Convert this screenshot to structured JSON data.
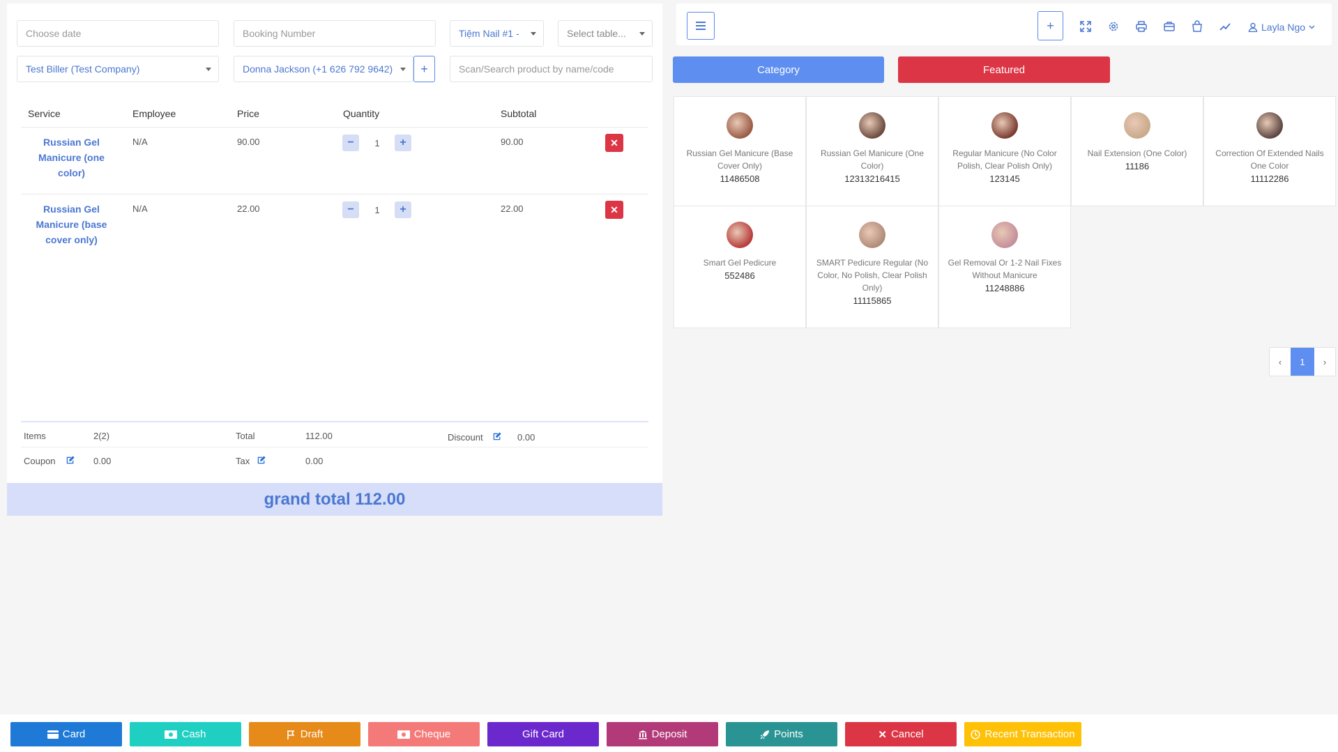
{
  "left": {
    "date_placeholder": "Choose date",
    "booking_placeholder": "Booking Number",
    "store": "Tiệm Nail #1 -",
    "table_placeholder": "Select table...",
    "biller": "Test Biller (Test Company)",
    "customer": "Donna Jackson (+1 626 792 9642)",
    "add_customer": "+",
    "search_placeholder": "Scan/Search product by name/code",
    "columns": [
      "Service",
      "Employee",
      "Price",
      "Quantity",
      "Subtotal"
    ],
    "rows": [
      {
        "service": "Russian Gel Manicure (one color)",
        "employee": "N/A",
        "price": "90.00",
        "qty": "1",
        "subtotal": "90.00"
      },
      {
        "service": "Russian Gel Manicure (base cover only)",
        "employee": "N/A",
        "price": "22.00",
        "qty": "1",
        "subtotal": "22.00"
      }
    ],
    "totals": {
      "items_label": "Items",
      "items_value": "2(2)",
      "total_label": "Total",
      "total_value": "112.00",
      "discount_label": "Discount",
      "discount_value": "0.00",
      "coupon_label": "Coupon",
      "coupon_value": "0.00",
      "tax_label": "Tax",
      "tax_value": "0.00"
    },
    "grand_total": "grand total 112.00"
  },
  "topbar": {
    "user": "Layla Ngo",
    "plus": "+"
  },
  "tabs": {
    "category": "Category",
    "featured": "Featured"
  },
  "products": [
    {
      "name": "Russian Gel Manicure (Base Cover Only)",
      "code": "11486508",
      "color": "#9a5a45"
    },
    {
      "name": "Russian Gel Manicure (One Color)",
      "code": "12313216415",
      "color": "#6b4a3e"
    },
    {
      "name": "Regular Manicure (No Color Polish, Clear Polish Only)",
      "code": "123145",
      "color": "#7a3b30"
    },
    {
      "name": "Nail Extension (One Color)",
      "code": "11186",
      "color": "#c9a98a"
    },
    {
      "name": "Correction Of Extended Nails One Color",
      "code": "11112286",
      "color": "#5a4540"
    },
    {
      "name": "Smart Gel Pedicure",
      "code": "552486",
      "color": "#b83a3a"
    },
    {
      "name": "SMART Pedicure Regular (No Color, No Polish, Clear Polish Only)",
      "code": "11115865",
      "color": "#b08a78"
    },
    {
      "name": "Gel Removal Or 1-2 Nail Fixes Without Manicure",
      "code": "11248886",
      "color": "#c58e9a"
    }
  ],
  "pagination": {
    "prev": "‹",
    "current": "1",
    "next": "›"
  },
  "footer": {
    "card": "Card",
    "cash": "Cash",
    "draft": "Draft",
    "cheque": "Cheque",
    "gift_card": "Gift Card",
    "deposit": "Deposit",
    "points": "Points",
    "cancel": "Cancel",
    "recent": "Recent Transaction"
  },
  "colors": {
    "card": "#1e7ad6",
    "cash": "#1fcfc2",
    "draft": "#e68a1a",
    "cheque": "#f47a7a",
    "gift_card": "#6b28cc",
    "deposit": "#b23a78",
    "points": "#2a9494",
    "cancel": "#dc3545",
    "recent": "#ffc107"
  }
}
